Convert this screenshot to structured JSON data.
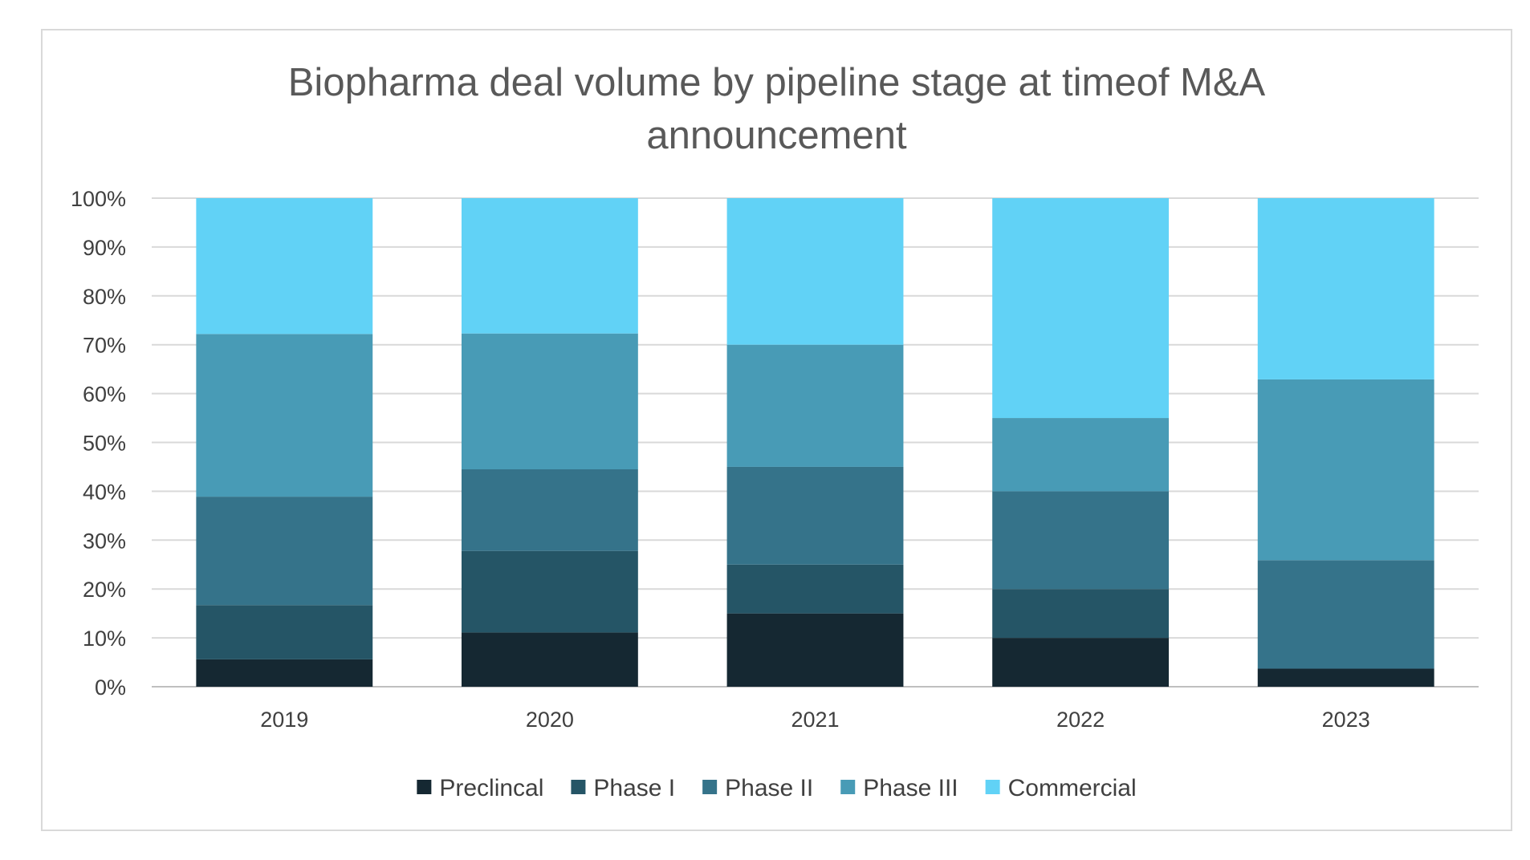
{
  "chart_data": {
    "type": "bar",
    "stacked": true,
    "percent": true,
    "title_lines": [
      "Biopharma deal volume by pipeline stage at timeof M&A",
      "announcement"
    ],
    "categories": [
      "2019",
      "2020",
      "2021",
      "2022",
      "2023"
    ],
    "series": [
      {
        "name": "Preclincal",
        "color": "#152832",
        "values": [
          5.6,
          11.1,
          15.0,
          10.0,
          3.7
        ]
      },
      {
        "name": "Phase I",
        "color": "#255566",
        "values": [
          11.1,
          16.7,
          10.0,
          10.0,
          0.0
        ]
      },
      {
        "name": "Phase II",
        "color": "#35738a",
        "values": [
          22.2,
          16.7,
          20.0,
          20.0,
          22.2
        ]
      },
      {
        "name": "Phase III",
        "color": "#489bb6",
        "values": [
          33.3,
          27.8,
          25.0,
          15.0,
          37.0
        ]
      },
      {
        "name": "Commercial",
        "color": "#61d2f6",
        "values": [
          27.8,
          27.7,
          30.0,
          45.0,
          37.1
        ]
      }
    ],
    "ylim": [
      0,
      100
    ],
    "yticks": [
      "0%",
      "10%",
      "20%",
      "30%",
      "40%",
      "50%",
      "60%",
      "70%",
      "80%",
      "90%",
      "100%"
    ],
    "grid": true,
    "legend_position": "bottom"
  }
}
